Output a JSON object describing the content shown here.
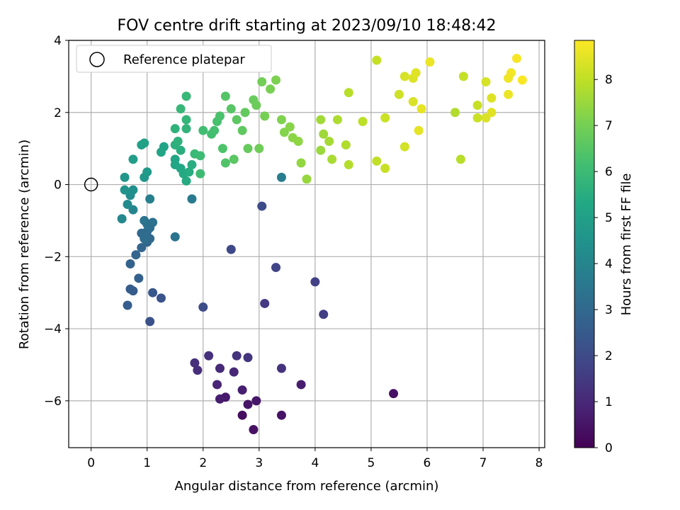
{
  "chart_data": {
    "type": "scatter",
    "title": "FOV centre drift starting at 2023/09/10 18:48:42",
    "xlabel": "Angular distance from reference (arcmin)",
    "ylabel": "Rotation from reference (arcmin)",
    "xlim": [
      -0.4,
      8.1
    ],
    "ylim": [
      -7.3,
      4.0
    ],
    "xticks": [
      "0",
      "1",
      "2",
      "3",
      "4",
      "5",
      "6",
      "7",
      "8"
    ],
    "yticks": [
      "−6",
      "−4",
      "−2",
      "0",
      "2",
      "4"
    ],
    "grid": true,
    "legend": {
      "position": "top-left",
      "entries": [
        "Reference platepar"
      ]
    },
    "reference": {
      "x": 0,
      "y": 0
    },
    "colorbar": {
      "label": "Hours from first FF file",
      "colormap": "viridis",
      "range": [
        0,
        8.85
      ],
      "ticks": [
        "0",
        "1",
        "2",
        "3",
        "4",
        "5",
        "6",
        "7",
        "8"
      ]
    },
    "points": [
      {
        "x": 2.7,
        "y": -6.4,
        "h": 0.3
      },
      {
        "x": 2.9,
        "y": -6.8,
        "h": 0.4
      },
      {
        "x": 3.4,
        "y": -6.4,
        "h": 0.45
      },
      {
        "x": 2.8,
        "y": -6.1,
        "h": 0.5
      },
      {
        "x": 2.95,
        "y": -6.0,
        "h": 0.55
      },
      {
        "x": 2.4,
        "y": -5.9,
        "h": 0.6
      },
      {
        "x": 2.3,
        "y": -5.95,
        "h": 0.7
      },
      {
        "x": 2.7,
        "y": -5.7,
        "h": 0.75
      },
      {
        "x": 5.4,
        "y": -5.8,
        "h": 0.4
      },
      {
        "x": 3.75,
        "y": -5.55,
        "h": 0.7
      },
      {
        "x": 2.25,
        "y": -5.55,
        "h": 0.9
      },
      {
        "x": 2.55,
        "y": -5.2,
        "h": 1.0
      },
      {
        "x": 2.3,
        "y": -5.1,
        "h": 1.05
      },
      {
        "x": 1.9,
        "y": -5.15,
        "h": 1.15
      },
      {
        "x": 1.85,
        "y": -4.95,
        "h": 1.2
      },
      {
        "x": 2.1,
        "y": -4.75,
        "h": 1.25
      },
      {
        "x": 2.6,
        "y": -4.75,
        "h": 1.3
      },
      {
        "x": 2.8,
        "y": -4.8,
        "h": 1.35
      },
      {
        "x": 3.4,
        "y": -5.1,
        "h": 1.3
      },
      {
        "x": 3.1,
        "y": -3.3,
        "h": 1.5
      },
      {
        "x": 4.15,
        "y": -3.6,
        "h": 1.6
      },
      {
        "x": 4.0,
        "y": -2.7,
        "h": 1.7
      },
      {
        "x": 3.3,
        "y": -2.3,
        "h": 1.8
      },
      {
        "x": 2.5,
        "y": -1.8,
        "h": 1.9
      },
      {
        "x": 3.05,
        "y": -0.6,
        "h": 2.0
      },
      {
        "x": 2.0,
        "y": -3.4,
        "h": 2.05
      },
      {
        "x": 1.05,
        "y": -3.8,
        "h": 2.2
      },
      {
        "x": 1.25,
        "y": -3.15,
        "h": 2.3
      },
      {
        "x": 1.1,
        "y": -3.0,
        "h": 2.4
      },
      {
        "x": 0.75,
        "y": -2.95,
        "h": 2.5
      },
      {
        "x": 0.7,
        "y": -2.9,
        "h": 2.55
      },
      {
        "x": 0.65,
        "y": -3.35,
        "h": 2.6
      },
      {
        "x": 0.85,
        "y": -2.6,
        "h": 2.7
      },
      {
        "x": 0.7,
        "y": -2.2,
        "h": 2.8
      },
      {
        "x": 0.8,
        "y": -1.95,
        "h": 2.85
      },
      {
        "x": 0.9,
        "y": -1.75,
        "h": 2.9
      },
      {
        "x": 1.0,
        "y": -1.6,
        "h": 2.95
      },
      {
        "x": 1.05,
        "y": -1.5,
        "h": 3.0
      },
      {
        "x": 0.9,
        "y": -1.35,
        "h": 3.05
      },
      {
        "x": 1.0,
        "y": -1.3,
        "h": 3.1
      },
      {
        "x": 0.95,
        "y": -1.5,
        "h": 3.15
      },
      {
        "x": 1.05,
        "y": -1.2,
        "h": 3.2
      },
      {
        "x": 1.0,
        "y": -1.1,
        "h": 3.25
      },
      {
        "x": 1.1,
        "y": -1.05,
        "h": 3.3
      },
      {
        "x": 0.95,
        "y": -1.0,
        "h": 3.35
      },
      {
        "x": 1.5,
        "y": -1.45,
        "h": 3.4
      },
      {
        "x": 1.8,
        "y": -0.4,
        "h": 3.6
      },
      {
        "x": 3.4,
        "y": 0.2,
        "h": 3.7
      },
      {
        "x": 1.05,
        "y": -0.4,
        "h": 3.8
      },
      {
        "x": 0.75,
        "y": -0.7,
        "h": 4.0
      },
      {
        "x": 0.55,
        "y": -0.95,
        "h": 4.1
      },
      {
        "x": 0.65,
        "y": -0.55,
        "h": 4.2
      },
      {
        "x": 0.7,
        "y": -0.3,
        "h": 4.3
      },
      {
        "x": 0.75,
        "y": -0.15,
        "h": 4.4
      },
      {
        "x": 0.6,
        "y": -0.15,
        "h": 4.5
      },
      {
        "x": 0.6,
        "y": 0.2,
        "h": 4.6
      },
      {
        "x": 0.95,
        "y": 0.2,
        "h": 4.7
      },
      {
        "x": 1.0,
        "y": 0.35,
        "h": 4.8
      },
      {
        "x": 0.75,
        "y": 0.7,
        "h": 4.9
      },
      {
        "x": 0.9,
        "y": 1.1,
        "h": 5.0
      },
      {
        "x": 0.95,
        "y": 1.15,
        "h": 5.05
      },
      {
        "x": 1.3,
        "y": 1.05,
        "h": 5.1
      },
      {
        "x": 1.25,
        "y": 0.9,
        "h": 5.15
      },
      {
        "x": 1.5,
        "y": 0.7,
        "h": 5.2
      },
      {
        "x": 1.5,
        "y": 0.55,
        "h": 5.25
      },
      {
        "x": 1.6,
        "y": 0.45,
        "h": 5.3
      },
      {
        "x": 1.65,
        "y": 0.3,
        "h": 5.35
      },
      {
        "x": 1.7,
        "y": 0.1,
        "h": 5.4
      },
      {
        "x": 1.75,
        "y": 0.35,
        "h": 5.45
      },
      {
        "x": 1.8,
        "y": 0.55,
        "h": 5.5
      },
      {
        "x": 1.6,
        "y": 0.95,
        "h": 5.55
      },
      {
        "x": 1.5,
        "y": 1.1,
        "h": 5.6
      },
      {
        "x": 1.55,
        "y": 1.2,
        "h": 5.65
      },
      {
        "x": 1.5,
        "y": 1.55,
        "h": 5.7
      },
      {
        "x": 1.7,
        "y": 1.55,
        "h": 5.75
      },
      {
        "x": 1.7,
        "y": 1.8,
        "h": 5.8
      },
      {
        "x": 1.6,
        "y": 2.1,
        "h": 5.85
      },
      {
        "x": 1.7,
        "y": 2.45,
        "h": 5.9
      },
      {
        "x": 1.85,
        "y": 0.85,
        "h": 5.95
      },
      {
        "x": 1.95,
        "y": 0.8,
        "h": 6.0
      },
      {
        "x": 1.95,
        "y": 0.3,
        "h": 6.05
      },
      {
        "x": 2.0,
        "y": 1.5,
        "h": 6.1
      },
      {
        "x": 2.15,
        "y": 1.4,
        "h": 6.15
      },
      {
        "x": 2.2,
        "y": 1.5,
        "h": 6.2
      },
      {
        "x": 2.25,
        "y": 1.75,
        "h": 6.25
      },
      {
        "x": 2.3,
        "y": 1.9,
        "h": 6.3
      },
      {
        "x": 2.35,
        "y": 1.0,
        "h": 6.35
      },
      {
        "x": 2.4,
        "y": 0.6,
        "h": 6.4
      },
      {
        "x": 2.4,
        "y": 2.45,
        "h": 6.45
      },
      {
        "x": 2.5,
        "y": 2.1,
        "h": 6.5
      },
      {
        "x": 2.55,
        "y": 0.7,
        "h": 6.55
      },
      {
        "x": 2.6,
        "y": 1.8,
        "h": 6.6
      },
      {
        "x": 2.7,
        "y": 1.5,
        "h": 6.65
      },
      {
        "x": 2.75,
        "y": 2.0,
        "h": 6.7
      },
      {
        "x": 2.8,
        "y": 1.0,
        "h": 6.75
      },
      {
        "x": 2.9,
        "y": 2.35,
        "h": 6.8
      },
      {
        "x": 2.95,
        "y": 2.2,
        "h": 6.85
      },
      {
        "x": 3.0,
        "y": 1.0,
        "h": 6.9
      },
      {
        "x": 3.05,
        "y": 2.85,
        "h": 6.95
      },
      {
        "x": 3.1,
        "y": 1.9,
        "h": 7.0
      },
      {
        "x": 3.2,
        "y": 2.65,
        "h": 7.05
      },
      {
        "x": 3.3,
        "y": 2.9,
        "h": 7.1
      },
      {
        "x": 3.4,
        "y": 1.8,
        "h": 7.15
      },
      {
        "x": 3.45,
        "y": 1.45,
        "h": 7.2
      },
      {
        "x": 3.55,
        "y": 1.6,
        "h": 7.25
      },
      {
        "x": 3.6,
        "y": 1.3,
        "h": 7.3
      },
      {
        "x": 3.7,
        "y": 1.2,
        "h": 7.35
      },
      {
        "x": 3.75,
        "y": 0.6,
        "h": 7.4
      },
      {
        "x": 3.85,
        "y": 0.15,
        "h": 7.45
      },
      {
        "x": 4.1,
        "y": 0.95,
        "h": 7.5
      },
      {
        "x": 4.15,
        "y": 1.4,
        "h": 7.55
      },
      {
        "x": 4.1,
        "y": 1.8,
        "h": 7.6
      },
      {
        "x": 4.25,
        "y": 1.2,
        "h": 7.65
      },
      {
        "x": 4.3,
        "y": 0.7,
        "h": 7.7
      },
      {
        "x": 4.4,
        "y": 1.8,
        "h": 7.75
      },
      {
        "x": 4.55,
        "y": 1.1,
        "h": 7.8
      },
      {
        "x": 4.6,
        "y": 0.55,
        "h": 7.85
      },
      {
        "x": 4.6,
        "y": 2.55,
        "h": 7.9
      },
      {
        "x": 4.85,
        "y": 1.75,
        "h": 7.95
      },
      {
        "x": 5.1,
        "y": 0.65,
        "h": 8.0
      },
      {
        "x": 5.1,
        "y": 3.45,
        "h": 8.05
      },
      {
        "x": 5.25,
        "y": 0.45,
        "h": 8.1
      },
      {
        "x": 5.25,
        "y": 1.85,
        "h": 8.15
      },
      {
        "x": 5.5,
        "y": 2.5,
        "h": 8.2
      },
      {
        "x": 5.6,
        "y": 1.05,
        "h": 8.25
      },
      {
        "x": 5.6,
        "y": 3.0,
        "h": 8.3
      },
      {
        "x": 5.75,
        "y": 2.3,
        "h": 8.35
      },
      {
        "x": 5.75,
        "y": 2.95,
        "h": 8.4
      },
      {
        "x": 5.8,
        "y": 3.1,
        "h": 8.45
      },
      {
        "x": 5.85,
        "y": 1.5,
        "h": 8.5
      },
      {
        "x": 5.9,
        "y": 2.1,
        "h": 8.55
      },
      {
        "x": 6.05,
        "y": 3.4,
        "h": 8.6
      },
      {
        "x": 6.5,
        "y": 2.0,
        "h": 7.8
      },
      {
        "x": 6.6,
        "y": 0.7,
        "h": 7.9
      },
      {
        "x": 6.65,
        "y": 3.0,
        "h": 8.05
      },
      {
        "x": 6.9,
        "y": 2.2,
        "h": 8.1
      },
      {
        "x": 6.9,
        "y": 1.85,
        "h": 8.15
      },
      {
        "x": 7.05,
        "y": 2.85,
        "h": 8.3
      },
      {
        "x": 7.05,
        "y": 1.85,
        "h": 8.35
      },
      {
        "x": 7.15,
        "y": 2.4,
        "h": 8.4
      },
      {
        "x": 7.15,
        "y": 2.0,
        "h": 8.45
      },
      {
        "x": 7.45,
        "y": 2.5,
        "h": 8.6
      },
      {
        "x": 7.45,
        "y": 2.95,
        "h": 8.65
      },
      {
        "x": 7.5,
        "y": 3.1,
        "h": 8.7
      },
      {
        "x": 7.6,
        "y": 3.5,
        "h": 8.75
      },
      {
        "x": 7.7,
        "y": 2.9,
        "h": 8.8
      }
    ]
  }
}
